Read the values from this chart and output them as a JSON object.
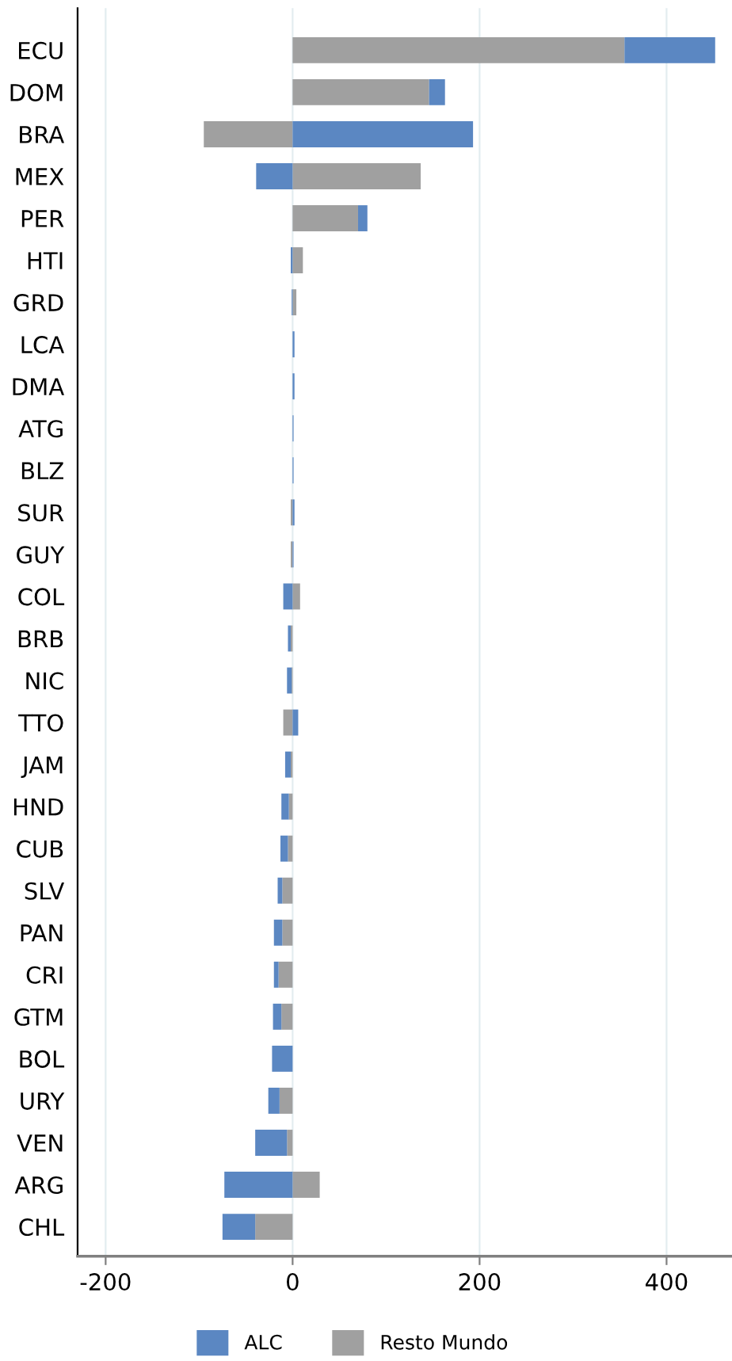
{
  "chart_data": {
    "type": "bar",
    "orientation": "horizontal",
    "stacked": true,
    "categories": [
      "ECU",
      "DOM",
      "BRA",
      "MEX",
      "PER",
      "HTI",
      "GRD",
      "LCA",
      "DMA",
      "ATG",
      "BLZ",
      "SUR",
      "GUY",
      "COL",
      "BRB",
      "NIC",
      "TTO",
      "JAM",
      "HND",
      "CUB",
      "SLV",
      "PAN",
      "CRI",
      "GTM",
      "BOL",
      "URY",
      "VEN",
      "ARG",
      "CHL"
    ],
    "series": [
      {
        "name": "Resto Mundo",
        "color": "#a0a0a0",
        "values": [
          355,
          146,
          -95,
          137,
          70,
          11,
          4,
          0,
          0,
          0,
          0,
          -2,
          -2,
          8,
          -2,
          -1,
          -10,
          -2,
          -4,
          -5,
          -11,
          -11,
          -15,
          -12,
          0,
          -14,
          -6,
          29,
          -40
        ]
      },
      {
        "name": "ALC",
        "color": "#5b87c2",
        "values": [
          97,
          17,
          193,
          -39,
          10,
          -2,
          -1,
          2,
          2,
          1,
          1,
          2,
          1,
          -10,
          -3,
          -5,
          6,
          -6,
          -8,
          -8,
          -5,
          -9,
          -5,
          -9,
          -22,
          -12,
          -34,
          -73,
          -35
        ]
      }
    ],
    "xlim": [
      -230,
      470
    ],
    "xticks": [
      -200,
      0,
      200,
      400
    ],
    "grid": "x",
    "legend": "bottom"
  }
}
